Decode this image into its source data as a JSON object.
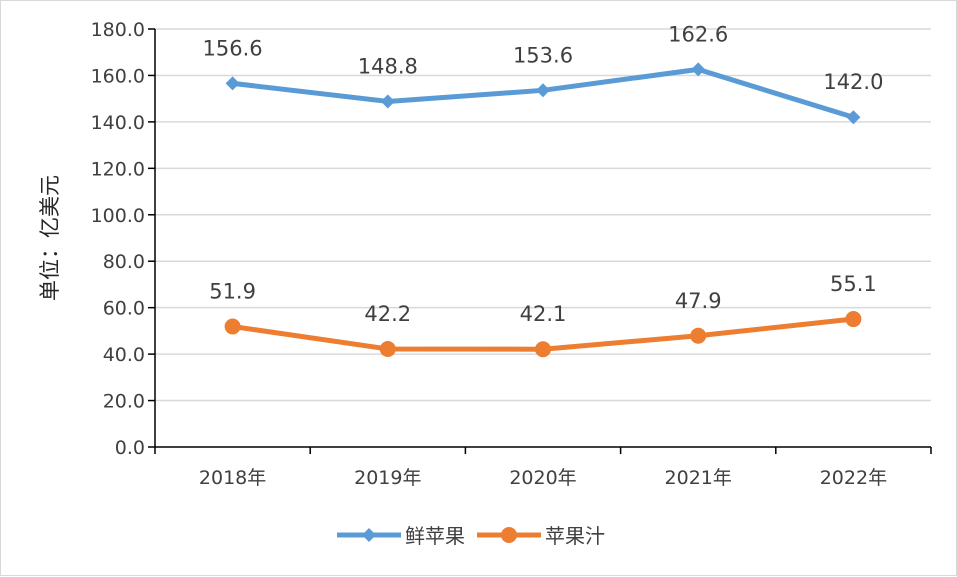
{
  "chart_data": {
    "type": "line",
    "categories": [
      "2018年",
      "2019年",
      "2020年",
      "2021年",
      "2022年"
    ],
    "series": [
      {
        "name": "鲜苹果",
        "values": [
          156.6,
          148.8,
          153.6,
          162.6,
          142.0
        ],
        "labels": [
          "156.6",
          "148.8",
          "153.6",
          "162.6",
          "142.0"
        ],
        "color": "#5b9bd5",
        "marker": "diamond"
      },
      {
        "name": "苹果汁",
        "values": [
          51.9,
          42.2,
          42.1,
          47.9,
          55.1
        ],
        "labels": [
          "51.9",
          "42.2",
          "42.1",
          "47.9",
          "55.1"
        ],
        "color": "#ed7d31",
        "marker": "circle"
      }
    ],
    "title": "",
    "xlabel": "",
    "ylabel": "单位：亿美元",
    "ylim": [
      0,
      180
    ],
    "yticks": [
      "0.0",
      "20.0",
      "40.0",
      "60.0",
      "80.0",
      "100.0",
      "120.0",
      "140.0",
      "160.0",
      "180.0"
    ],
    "grid": true,
    "legend": "bottom"
  }
}
